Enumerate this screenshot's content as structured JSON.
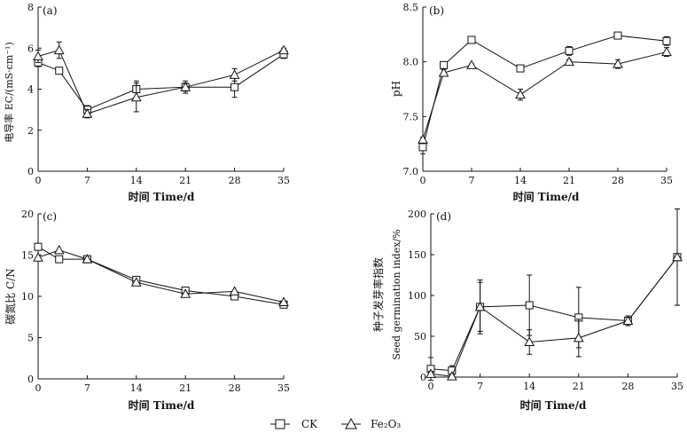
{
  "legend": {
    "items": [
      {
        "label": "CK",
        "marker": "square"
      },
      {
        "label": "Fe₂O₃",
        "marker": "triangle"
      }
    ]
  },
  "chart_data": [
    {
      "id": "a",
      "type": "line",
      "panel_label": "(a)",
      "xlabel": "时间 Time/d",
      "ylabel": "电导率 EC/(mS·cm⁻¹)",
      "x": [
        0,
        3,
        7,
        14,
        21,
        28,
        35
      ],
      "xticks": [
        "0",
        "7",
        "14",
        "21",
        "28",
        "35"
      ],
      "xlim": [
        0,
        35
      ],
      "ylim": [
        0,
        8
      ],
      "yticks": [
        0,
        2,
        4,
        6,
        8
      ],
      "ytick_labels": [
        "0",
        "2",
        "4",
        "6",
        "8"
      ],
      "series": [
        {
          "name": "CK",
          "marker": "square",
          "values": [
            5.3,
            4.9,
            3.0,
            4.0,
            4.1,
            4.1,
            5.7
          ],
          "errors": [
            0.2,
            0.1,
            0.2,
            0.4,
            0.3,
            0.5,
            0.2
          ]
        },
        {
          "name": "Fe₂O₃",
          "marker": "triangle",
          "values": [
            5.6,
            5.9,
            2.8,
            3.6,
            4.1,
            4.7,
            5.9
          ],
          "errors": [
            0.3,
            0.4,
            0.2,
            0.7,
            0.2,
            0.3,
            0.1
          ]
        }
      ]
    },
    {
      "id": "b",
      "type": "line",
      "panel_label": "(b)",
      "xlabel": "时间 Time/d",
      "ylabel": "pH",
      "x": [
        0,
        3,
        7,
        14,
        21,
        28,
        35
      ],
      "xticks": [
        "0",
        "7",
        "14",
        "21",
        "28",
        "35"
      ],
      "xlim": [
        0,
        35
      ],
      "ylim": [
        7.0,
        8.5
      ],
      "yticks": [
        7.0,
        7.5,
        8.0,
        8.5
      ],
      "ytick_labels": [
        "7.0",
        "7.5",
        "8.0",
        "8.5"
      ],
      "series": [
        {
          "name": "CK",
          "marker": "square",
          "values": [
            7.22,
            7.97,
            8.2,
            7.94,
            8.1,
            8.24,
            8.19
          ],
          "errors": [
            0.06,
            0.03,
            0.01,
            0.01,
            0.04,
            0.01,
            0.04
          ]
        },
        {
          "name": "Fe₂O₃",
          "marker": "triangle",
          "values": [
            7.29,
            7.9,
            7.97,
            7.7,
            8.0,
            7.98,
            8.09
          ],
          "errors": [
            0.02,
            0.03,
            0.01,
            0.05,
            0.02,
            0.04,
            0.04
          ]
        }
      ]
    },
    {
      "id": "c",
      "type": "line",
      "panel_label": "(c)",
      "xlabel": "时间 Time/d",
      "ylabel": "碳氮比 C/N",
      "x": [
        0,
        3,
        7,
        14,
        21,
        28,
        35
      ],
      "xticks": [
        "0",
        "7",
        "14",
        "21",
        "28",
        "35"
      ],
      "xlim": [
        0,
        35
      ],
      "ylim": [
        0,
        20
      ],
      "yticks": [
        0,
        5,
        10,
        15,
        20
      ],
      "ytick_labels": [
        "0",
        "5",
        "10",
        "15",
        "20"
      ],
      "series": [
        {
          "name": "CK",
          "marker": "square",
          "values": [
            16.0,
            14.5,
            14.5,
            12.0,
            10.7,
            10.0,
            9.0
          ],
          "errors": [
            0,
            0,
            0,
            0,
            0,
            0,
            0
          ]
        },
        {
          "name": "Fe₂O₃",
          "marker": "triangle",
          "values": [
            14.7,
            15.6,
            14.5,
            11.7,
            10.3,
            10.6,
            9.3
          ],
          "errors": [
            0,
            0,
            0,
            0,
            0,
            0,
            0
          ]
        }
      ]
    },
    {
      "id": "d",
      "type": "line",
      "panel_label": "(d)",
      "xlabel": "时间 Time/d",
      "ylabel": "种子发芽率指数",
      "ylabel2": "Seed germination index/%",
      "x": [
        0,
        3,
        7,
        14,
        21,
        28,
        35
      ],
      "xticks": [
        "0",
        "7",
        "14",
        "21",
        "28",
        "35"
      ],
      "xlim": [
        0,
        35
      ],
      "ylim": [
        0,
        200
      ],
      "yticks": [
        0,
        50,
        100,
        150,
        200
      ],
      "ytick_labels": [
        "0",
        "50",
        "100",
        "150",
        "200"
      ],
      "series": [
        {
          "name": "CK",
          "marker": "square",
          "values": [
            10,
            8,
            86,
            88,
            73,
            69,
            147
          ],
          "errors": [
            14,
            6,
            33,
            37,
            37,
            6,
            59
          ]
        },
        {
          "name": "Fe₂O₃",
          "marker": "triangle",
          "values": [
            4,
            1,
            86,
            43,
            48,
            69,
            147
          ],
          "errors": [
            3,
            2,
            30,
            15,
            23,
            6,
            59
          ]
        }
      ]
    }
  ]
}
